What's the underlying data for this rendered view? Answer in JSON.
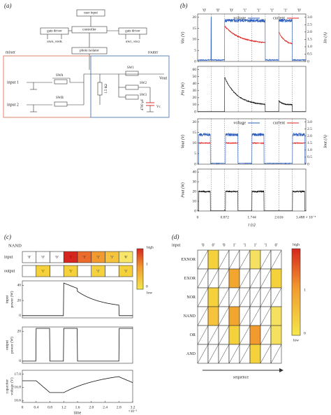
{
  "panel_a": {
    "label": "(a)",
    "user_input": "user input",
    "controller": "controller",
    "gate_driver_left": "gate driver",
    "gate_driver_right": "gate driver",
    "left_switches": "SWA, SWB",
    "right_switches": "SW1, SW2",
    "photo_isolator": "photo isolator",
    "mixer": "mixer",
    "router": "router",
    "input_1": "input 1",
    "input_2": "input 2",
    "switches": [
      "SWA",
      "SWB",
      "SW1",
      "SW2",
      "SW3"
    ],
    "resistor": "1.5 kΩ",
    "capacitor": "4700 μF",
    "vc": "Vc",
    "vout": "Vout"
  },
  "panel_b": {
    "label": "(b)",
    "bits": [
      "'0'",
      "'0'",
      "'0'",
      "'1'",
      "'1'",
      "'1'",
      "'1'",
      "'0'"
    ],
    "plots": [
      {
        "ylabel": "Vin (V)",
        "yticks": [
          "0",
          "5",
          "10",
          "15",
          "20"
        ],
        "y2label": "Iin (A)",
        "y2ticks": [
          "0",
          "0.5",
          "1.0",
          "1.5",
          "2.0",
          "2.5",
          "3.0"
        ],
        "legend": [
          "voltage",
          "current"
        ]
      },
      {
        "ylabel": "Pin (W)",
        "yticks": [
          "0",
          "10",
          "20",
          "30",
          "40",
          "50",
          "60"
        ]
      },
      {
        "ylabel": "Vout (V)",
        "yticks": [
          "0",
          "5",
          "10",
          "15",
          "20"
        ],
        "y2label": "Iout (A)",
        "y2ticks": [
          "0",
          "0.5",
          "1.0",
          "1.5",
          "2.0",
          "2.5",
          "3.0"
        ],
        "legend": [
          "voltage",
          "current"
        ]
      },
      {
        "ylabel": "Pout (W)",
        "yticks": [
          "0",
          "10",
          "20",
          "30",
          "40"
        ]
      }
    ],
    "xticks": [
      "0",
      "0.872",
      "1.744",
      "2.616",
      "3.488 × 10⁻³"
    ],
    "xlabel": "t (s)"
  },
  "panel_c": {
    "label": "(c)",
    "title": "NAND",
    "row_labels": [
      "input",
      "output"
    ],
    "inputs": [
      "'0'",
      "'0'",
      "'0'",
      "'1'",
      "'1'",
      "'1'",
      "'1'",
      "'0'"
    ],
    "outputs": [
      "'1'",
      "'1'",
      "'1'",
      "'1'"
    ],
    "colorbar": [
      "high",
      "1",
      "0",
      "low"
    ],
    "plots": [
      {
        "ylabel": [
          "input",
          "power (W)"
        ],
        "yticks": [
          "0",
          "20",
          "40"
        ]
      },
      {
        "ylabel": [
          "output",
          "power (W)"
        ],
        "yticks": [
          "0",
          "20"
        ]
      },
      {
        "ylabel": [
          "capacitor",
          "voltage (V)"
        ],
        "yticks": [
          "16.6",
          "16.8",
          "17.0"
        ]
      }
    ],
    "xticks": [
      "0",
      "0.4",
      "0.8",
      "1.2",
      "1.6",
      "2.0",
      "2.4",
      "2.8",
      "3.2"
    ],
    "xlabel": "time",
    "xexp": "×10⁻³"
  },
  "panel_d": {
    "label": "(d)",
    "input_label": "input",
    "inputs": [
      "'0",
      "0'",
      "'0",
      "1'",
      "'1",
      "1'",
      "'1",
      "0'"
    ],
    "rows": [
      "EXNOR",
      "EXOR",
      "NOR",
      "NAND",
      "OR",
      "AND"
    ],
    "colorbar": [
      "high",
      "1",
      "0",
      "low"
    ],
    "xlabel": "sequence"
  }
}
